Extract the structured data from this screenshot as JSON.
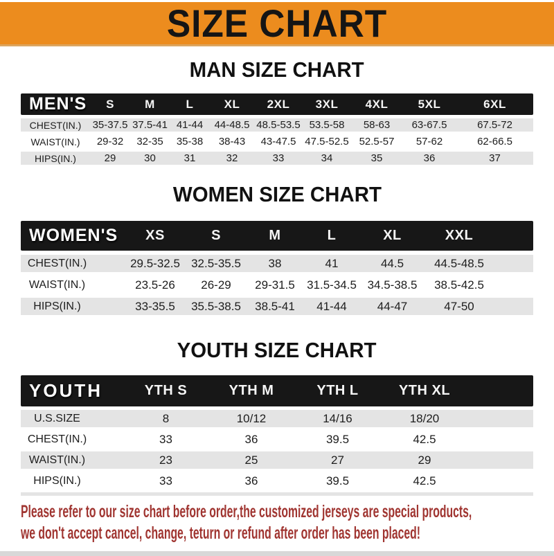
{
  "theme": {
    "accent_orange": "#ec8c1e",
    "bar_black": "#171717",
    "row_gray": "#e4e4e4",
    "note_red": "#a03531"
  },
  "banner": {
    "title": "SIZE CHART"
  },
  "sections": {
    "men": {
      "title": "MAN SIZE CHART",
      "label": "MEN'S",
      "columns": [
        "S",
        "M",
        "L",
        "XL",
        "2XL",
        "3XL",
        "4XL",
        "5XL",
        "6XL"
      ],
      "rows": [
        {
          "label": "CHEST(IN.)",
          "values": [
            "35-37.5",
            "37.5-41",
            "41-44",
            "44-48.5",
            "48.5-53.5",
            "53.5-58",
            "58-63",
            "63-67.5",
            "67.5-72"
          ]
        },
        {
          "label": "WAIST(IN.)",
          "values": [
            "29-32",
            "32-35",
            "35-38",
            "38-43",
            "43-47.5",
            "47.5-52.5",
            "52.5-57",
            "57-62",
            "62-66.5"
          ]
        },
        {
          "label": "HIPS(IN.)",
          "values": [
            "29",
            "30",
            "31",
            "32",
            "33",
            "34",
            "35",
            "36",
            "37"
          ]
        }
      ]
    },
    "women": {
      "title": "WOMEN SIZE CHART",
      "label": "WOMEN'S",
      "columns": [
        "XS",
        "S",
        "M",
        "L",
        "XL",
        "XXL"
      ],
      "rows": [
        {
          "label": "CHEST(IN.)",
          "values": [
            "29.5-32.5",
            "32.5-35.5",
            "38",
            "41",
            "44.5",
            "44.5-48.5"
          ]
        },
        {
          "label": "WAIST(IN.)",
          "values": [
            "23.5-26",
            "26-29",
            "29-31.5",
            "31.5-34.5",
            "34.5-38.5",
            "38.5-42.5"
          ]
        },
        {
          "label": "HIPS(IN.)",
          "values": [
            "33-35.5",
            "35.5-38.5",
            "38.5-41",
            "41-44",
            "44-47",
            "47-50"
          ]
        }
      ]
    },
    "youth": {
      "title": "YOUTH SIZE CHART",
      "label": "YOUTH",
      "columns": [
        "YTH S",
        "YTH M",
        "YTH L",
        "YTH XL"
      ],
      "rows": [
        {
          "label": "U.S.SIZE",
          "values": [
            "8",
            "10/12",
            "14/16",
            "18/20"
          ]
        },
        {
          "label": "CHEST(IN.)",
          "values": [
            "33",
            "36",
            "39.5",
            "42.5"
          ]
        },
        {
          "label": "WAIST(IN.)",
          "values": [
            "23",
            "25",
            "27",
            "29"
          ]
        },
        {
          "label": "HIPS(IN.)",
          "values": [
            "33",
            "36",
            "39.5",
            "42.5"
          ]
        }
      ]
    }
  },
  "footer": {
    "line1": "Please refer to our size chart before order,the customized jerseys are special products,",
    "line2": "we don't accept cancel, change, teturn or refund after order has been placed!"
  }
}
